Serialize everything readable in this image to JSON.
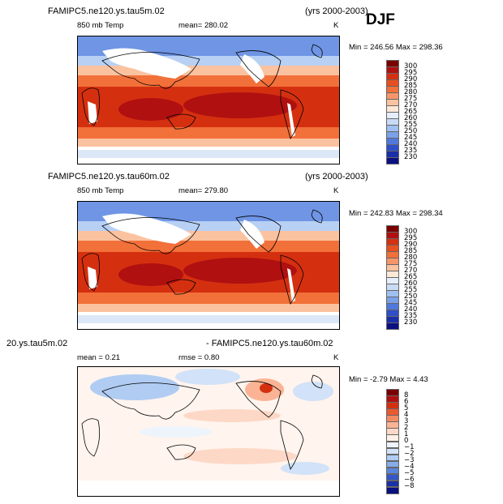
{
  "season": "DJF",
  "panels": [
    {
      "case_title": "FAMIPC5.ne120.ys.tau5m.02",
      "years": "(yrs 2000-2003)",
      "variable": "850 mb Temp",
      "stat1": "mean=  280.02",
      "stat2": "",
      "units": "K",
      "minmax": "Min = 246.56  Max = 298.36",
      "colorbar": {
        "labels": [
          "300",
          "295",
          "290",
          "285",
          "280",
          "275",
          "270",
          "265",
          "260",
          "255",
          "250",
          "245",
          "240",
          "235",
          "230"
        ],
        "colors": [
          "#7a0000",
          "#b01010",
          "#d43010",
          "#e84e1f",
          "#f2703a",
          "#f7956a",
          "#fbc2a0",
          "#fde8d8",
          "#e5eefa",
          "#c8dbf6",
          "#9fc0f0",
          "#7aa0e8",
          "#5078dc",
          "#2f4fc8",
          "#1a2fa8",
          "#0a1080"
        ]
      }
    },
    {
      "case_title": "FAMIPC5.ne120.ys.tau60m.02",
      "years": "(yrs 2000-2003)",
      "variable": "850 mb Temp",
      "stat1": "mean=  279.80",
      "stat2": "",
      "units": "K",
      "minmax": "Min = 242.83  Max = 298.34",
      "colorbar": {
        "labels": [
          "300",
          "295",
          "290",
          "285",
          "280",
          "275",
          "270",
          "265",
          "260",
          "255",
          "250",
          "245",
          "240",
          "235",
          "230"
        ],
        "colors": [
          "#7a0000",
          "#b01010",
          "#d43010",
          "#e84e1f",
          "#f2703a",
          "#f7956a",
          "#fbc2a0",
          "#fde8d8",
          "#e5eefa",
          "#c8dbf6",
          "#9fc0f0",
          "#7aa0e8",
          "#5078dc",
          "#2f4fc8",
          "#1a2fa8",
          "#0a1080"
        ]
      }
    },
    {
      "case_title": "20.ys.tau5m.02",
      "years": "- FAMIPC5.ne120.ys.tau60m.02",
      "variable": "mean =    0.21",
      "stat1": "rmse =    0.80",
      "stat2": "",
      "units": "K",
      "minmax": "Min =   -2.79  Max =    4.43",
      "colorbar": {
        "labels": [
          "8",
          "6",
          "5",
          "4",
          "3",
          "2",
          "1",
          "0",
          "−1",
          "−2",
          "−3",
          "−4",
          "−5",
          "−6",
          "−8"
        ],
        "colors": [
          "#7a0000",
          "#b01010",
          "#d43010",
          "#ea5a30",
          "#f58a62",
          "#fab495",
          "#fdd8c6",
          "#fff0e8",
          "#eef4fc",
          "#d2e2f8",
          "#b0ccf2",
          "#86acea",
          "#5a86de",
          "#3458c8",
          "#1a30a8",
          "#0a1080"
        ]
      }
    }
  ]
}
